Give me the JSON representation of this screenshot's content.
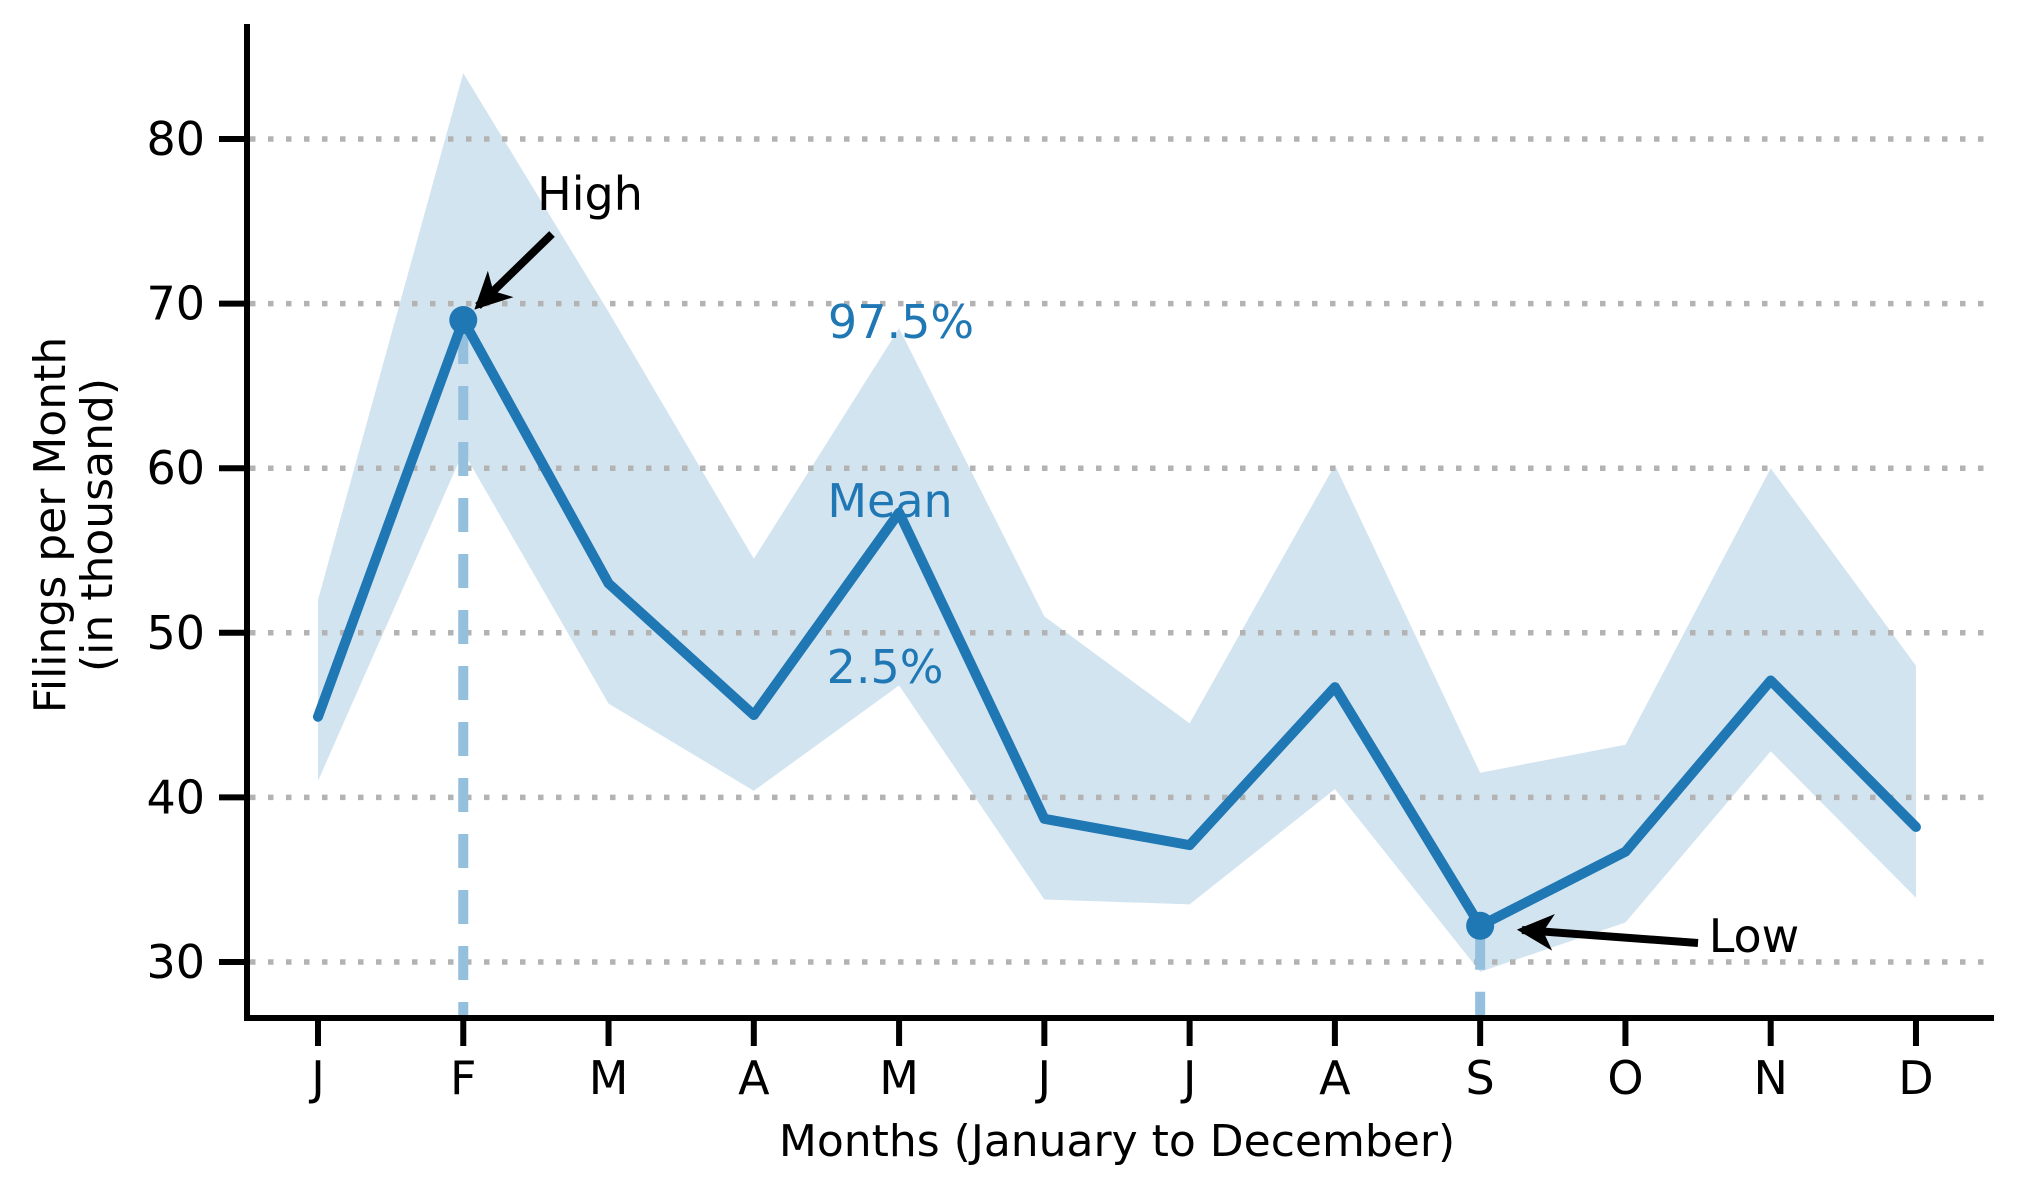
{
  "chart_data": {
    "type": "line",
    "title": "",
    "xlabel": "Months (January to December)",
    "ylabel_lines": [
      "Filings per Month",
      "(in thousand)"
    ],
    "x_tick_labels": [
      "J",
      "F",
      "M",
      "A",
      "M",
      "J",
      "J",
      "A",
      "S",
      "O",
      "N",
      "D"
    ],
    "y_ticks": [
      30,
      40,
      50,
      60,
      70,
      80
    ],
    "ylim": [
      26.5,
      87
    ],
    "grid": "horizontal-dotted",
    "legend_position": "none",
    "series": [
      {
        "name": "Mean",
        "role": "mean",
        "values": [
          44.9,
          69,
          53,
          45,
          57.3,
          38.7,
          37.1,
          46.7,
          32.2,
          36.7,
          47.1,
          38.2
        ]
      },
      {
        "name": "97.5%",
        "role": "upper",
        "values": [
          52,
          84,
          69.5,
          54.5,
          68.5,
          51,
          44.5,
          60.2,
          41.5,
          43.2,
          60,
          48
        ]
      },
      {
        "name": "2.5%",
        "role": "lower",
        "values": [
          41,
          61,
          45.7,
          40.4,
          46.8,
          33.8,
          33.5,
          40.5,
          29.4,
          32.4,
          42.8,
          33.9
        ]
      }
    ],
    "band_labels": {
      "upper": "97.5%",
      "mean": "Mean",
      "lower": "2.5%"
    },
    "highlights": [
      {
        "label": "High",
        "month": "F",
        "month_index": 1,
        "value": 69
      },
      {
        "label": "Low",
        "month": "S",
        "month_index": 8,
        "value": 32.2
      }
    ],
    "colors": {
      "line": "#1f77b4",
      "band_fill": "#d3e4f1",
      "dashed_vline": "#94bfdd",
      "grid": "#b3b3b3",
      "axis": "#000000",
      "annotation_blue": "#1f77b4",
      "annotation_black": "#000000",
      "background": "#ffffff"
    }
  }
}
